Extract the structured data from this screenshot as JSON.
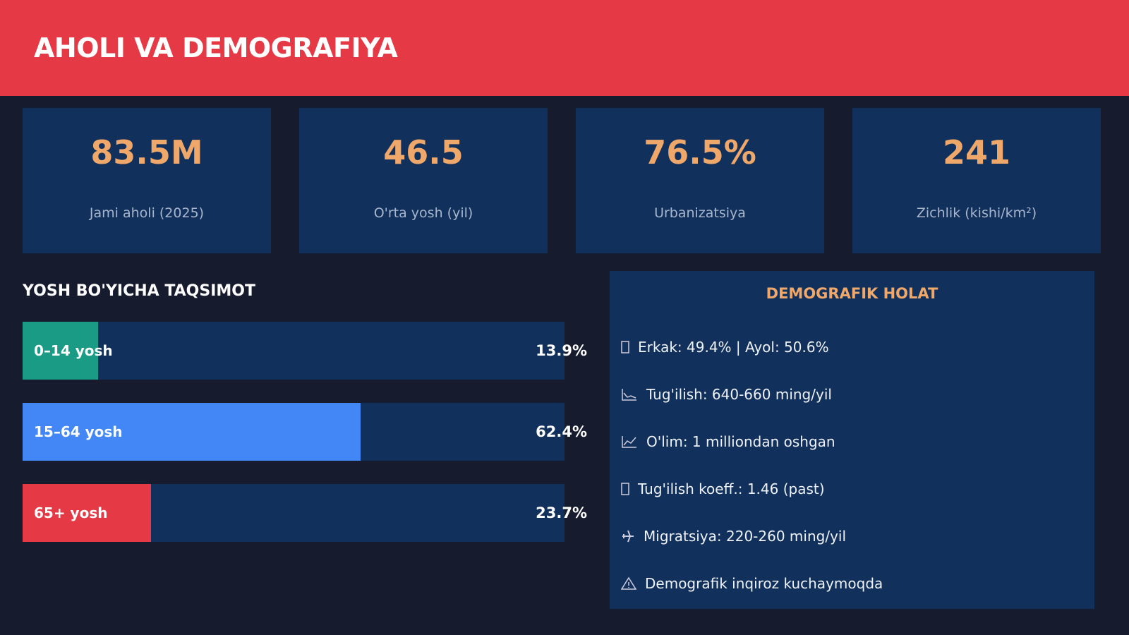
{
  "header": {
    "title": "AHOLI VA DEMOGRAFIYA"
  },
  "stats": [
    {
      "value": "83.5M",
      "label": "Jami aholi (2025)"
    },
    {
      "value": "46.5",
      "label": "O'rta yosh (yil)"
    },
    {
      "value": "76.5%",
      "label": "Urbanizatsiya"
    },
    {
      "value": "241",
      "label": "Zichlik (kishi/km²)"
    }
  ],
  "age_chart": {
    "type": "bar",
    "title": "YOSH BO'YICHA TAQSIMOT",
    "categories": [
      "0–14 yosh",
      "15–64 yosh",
      "65+ yosh"
    ],
    "values": [
      13.9,
      62.4,
      23.7
    ],
    "value_labels": [
      "13.9%",
      "62.4%",
      "23.7%"
    ],
    "colors": [
      "#1a9b86",
      "#4287f5",
      "#e63946"
    ],
    "xlim": [
      0,
      100
    ]
  },
  "status": {
    "title": "DEMOGRAFIK HOLAT",
    "items": [
      "Erkak: 49.4% | Ayol: 50.6%",
      "Tug'ilish: 640-660 ming/yil",
      "O'lim: 1 milliondan oshgan",
      "Tug'ilish koeff.: 1.46 (past)",
      "Migratsiya: 220-260 ming/yil",
      "Demografik inqiroz kuchaymoqda"
    ]
  }
}
